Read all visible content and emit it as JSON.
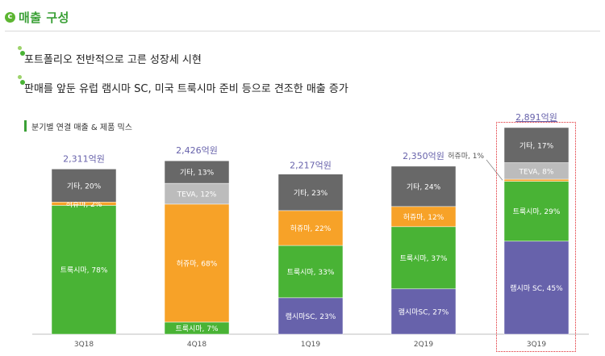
{
  "header": {
    "logo_letter": "c",
    "title": "매출 구성"
  },
  "bullets": [
    "포트폴리오 전반적으로 고른 성장세 시현",
    "판매를 앞둔 유럽  램시마 SC, 미국 트룩시마 준비 등으로 견조한 매출 증가"
  ],
  "sub_header": "분기별 연결 매출 & 제품 믹스",
  "colors": {
    "accent": "#3aa036",
    "truxima": "#49b335",
    "herzuma": "#f7a228",
    "teva": "#bcbcbc",
    "other": "#686868",
    "remsima": "#6762ab",
    "total_label": "#6762ab",
    "highlight": "#e0282e"
  },
  "chart_data": {
    "type": "bar",
    "stacked": true,
    "unit": "억원",
    "categories": [
      "3Q18",
      "4Q18",
      "1Q19",
      "2Q19",
      "3Q19"
    ],
    "totals": [
      "2,311억원",
      "2,426억원",
      "2,217억원",
      "2,350억원",
      "2,891억원"
    ],
    "total_values": [
      2311,
      2426,
      2217,
      2350,
      2891
    ],
    "highlighted_category": "3Q19",
    "bars": [
      [
        {
          "key": "truxima",
          "label": "트룩시마, 78%",
          "pct": 78
        },
        {
          "key": "herzuma",
          "label": "허쥬마, 2%",
          "pct": 2
        },
        {
          "key": "other",
          "label": "기타, 20%",
          "pct": 20
        }
      ],
      [
        {
          "key": "truxima",
          "label": "트룩시마, 7%",
          "pct": 7
        },
        {
          "key": "herzuma",
          "label": "허쥬마, 68%",
          "pct": 68
        },
        {
          "key": "teva",
          "label": "TEVA, 12%",
          "pct": 12
        },
        {
          "key": "other",
          "label": "기타, 13%",
          "pct": 13
        }
      ],
      [
        {
          "key": "remsima",
          "label": "램시마SC, 23%",
          "pct": 23
        },
        {
          "key": "truxima",
          "label": "트룩시마, 33%",
          "pct": 33
        },
        {
          "key": "herzuma",
          "label": "허쥬마, 22%",
          "pct": 22
        },
        {
          "key": "other",
          "label": "기타, 23%",
          "pct": 23
        }
      ],
      [
        {
          "key": "remsima",
          "label": "램시마SC, 27%",
          "pct": 27
        },
        {
          "key": "truxima",
          "label": "트룩시마, 37%",
          "pct": 37
        },
        {
          "key": "herzuma",
          "label": "허쥬마, 12%",
          "pct": 12
        },
        {
          "key": "other",
          "label": "기타, 24%",
          "pct": 24
        }
      ],
      [
        {
          "key": "remsima",
          "label": "램시마 SC, 45%",
          "pct": 45
        },
        {
          "key": "truxima",
          "label": "트룩시마, 29%",
          "pct": 29
        },
        {
          "key": "herzuma",
          "label": "허쥬마, 1%",
          "pct": 1,
          "callout": true
        },
        {
          "key": "teva",
          "label": "TEVA, 8%",
          "pct": 8
        },
        {
          "key": "other",
          "label": "기타,  17%",
          "pct": 17
        }
      ]
    ]
  }
}
